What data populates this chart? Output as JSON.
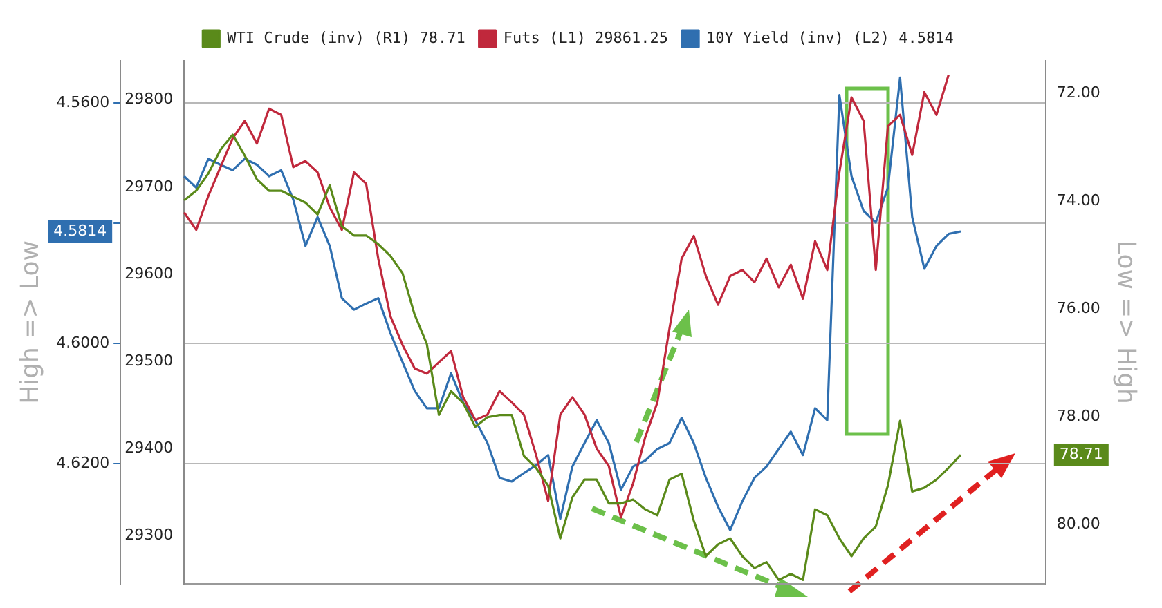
{
  "chart_data": {
    "type": "line",
    "categories": [
      null,
      null,
      null,
      null,
      null,
      null,
      null,
      null,
      null,
      null,
      null,
      null,
      null,
      null,
      null,
      null,
      null,
      null,
      null,
      null,
      null,
      null,
      null,
      null,
      null,
      null,
      null,
      null,
      null,
      null,
      null,
      null,
      null,
      null,
      null,
      null,
      null,
      null,
      null,
      null,
      null,
      null,
      null,
      null,
      null,
      null,
      null,
      null,
      null,
      null,
      null,
      null,
      null,
      null,
      null,
      null,
      null,
      null,
      null,
      null,
      null,
      null,
      null,
      null,
      null,
      null,
      null,
      null,
      null,
      null,
      null,
      null
    ],
    "series": [
      {
        "name": "WTI Crude (inv) (R1) 78.71",
        "color": "#5a8a1a",
        "axis": "y2",
        "values": [
          73.99,
          73.81,
          73.49,
          73.05,
          72.77,
          73.16,
          73.6,
          73.81,
          73.81,
          73.92,
          74.03,
          74.25,
          73.71,
          74.47,
          74.64,
          74.64,
          74.8,
          75.02,
          75.34,
          76.11,
          76.65,
          77.97,
          77.53,
          77.75,
          78.19,
          78.01,
          77.97,
          77.97,
          78.73,
          78.95,
          79.28,
          80.26,
          79.5,
          79.17,
          79.17,
          79.61,
          79.61,
          79.54,
          79.72,
          79.83,
          79.17,
          79.06,
          79.93,
          80.59,
          80.37,
          80.26,
          80.59,
          80.81,
          80.7,
          81.03,
          80.92,
          81.03,
          79.72,
          79.83,
          80.26,
          80.59,
          80.26,
          80.04,
          79.28,
          78.08,
          79.39,
          79.32,
          79.17,
          78.95,
          78.71,
          null,
          null,
          null,
          null,
          null,
          null,
          null
        ]
      },
      {
        "name": "Futs (L1) 29861.25",
        "color": "#c0283c",
        "axis": "y",
        "values": [
          29671,
          29651,
          29690,
          29723,
          29756,
          29776,
          29750,
          29790,
          29783,
          29723,
          29730,
          29717,
          29677,
          29651,
          29717,
          29704,
          29618,
          29552,
          29519,
          29492,
          29486,
          29499,
          29512,
          29459,
          29433,
          29439,
          29466,
          29453,
          29439,
          29393,
          29340,
          29439,
          29459,
          29439,
          29400,
          29380,
          29321,
          29360,
          29413,
          29453,
          29538,
          29618,
          29644,
          29598,
          29565,
          29598,
          29605,
          29591,
          29618,
          29585,
          29611,
          29572,
          29638,
          29605,
          29717,
          29803,
          29776,
          29605,
          29770,
          29783,
          29737,
          29809,
          29783,
          29829,
          null,
          null,
          null,
          null,
          null,
          null,
          null,
          null
        ]
      },
      {
        "name": "10Y Yield (inv) (L2) 4.5814",
        "color": "#2f6fb0",
        "axis": "y3",
        "values": [
          4.5722,
          4.5741,
          4.5693,
          4.5703,
          4.5712,
          4.5693,
          4.5703,
          4.5722,
          4.5712,
          4.5761,
          4.5838,
          4.579,
          4.5838,
          4.5925,
          4.5944,
          4.5934,
          4.5925,
          4.5983,
          4.6031,
          4.6079,
          4.6108,
          4.6108,
          4.605,
          4.6099,
          4.6128,
          4.6166,
          4.6224,
          4.623,
          4.6216,
          4.6203,
          4.6186,
          4.6292,
          4.6205,
          4.6166,
          4.6128,
          4.6166,
          4.6244,
          4.6205,
          4.6195,
          4.6176,
          4.6166,
          4.6124,
          4.6166,
          4.6224,
          4.6272,
          4.6311,
          4.6263,
          4.6224,
          4.6205,
          4.6176,
          4.6147,
          4.6186,
          4.6108,
          4.6128,
          4.5587,
          4.5722,
          4.578,
          4.5799,
          4.5741,
          4.5558,
          4.579,
          4.5876,
          4.5838,
          4.5818,
          4.5814,
          null,
          null,
          null,
          null,
          null,
          null,
          null
        ]
      }
    ],
    "ylim": [
      29245,
      29845
    ],
    "yticks": [
      29300,
      29400,
      29500,
      29600,
      29700,
      29800
    ],
    "y2lim": [
      81.1,
      71.4
    ],
    "y2ticks": [
      {
        "value": 72,
        "label": "72.00"
      },
      {
        "value": 74,
        "label": "74.00"
      },
      {
        "value": 76,
        "label": "76.00"
      },
      {
        "value": 78,
        "label": "78.00"
      },
      {
        "value": 80,
        "label": "80.00"
      }
    ],
    "y3lim": [
      4.64,
      4.553
    ],
    "y3ticks": [
      {
        "value": 4.56,
        "label": "4.5600"
      },
      {
        "value": 4.58,
        "label": null
      },
      {
        "value": 4.6,
        "label": "4.6000"
      },
      {
        "value": 4.62,
        "label": "4.6200"
      }
    ],
    "y2label": "Low => High",
    "y3label": "High => Low",
    "annotations": [
      "78.71",
      "4.5814"
    ],
    "grid": "y",
    "legend": "top",
    "tick_labels": "y",
    "marker": "none",
    "line_style": "solid"
  }
}
